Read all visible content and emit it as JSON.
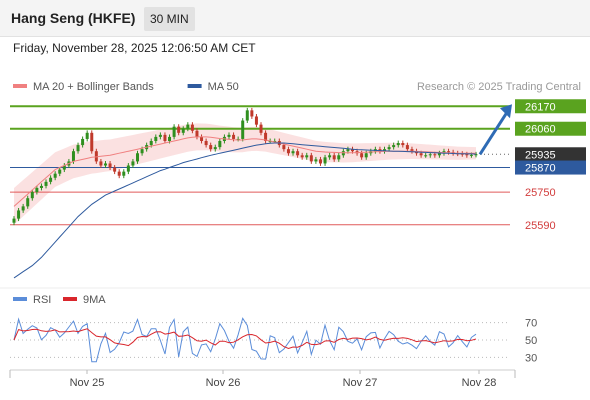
{
  "header": {
    "instrument": "Hang Seng (HKFE)",
    "timeframe": "30 MIN",
    "datetime": "Friday, November 28, 2025 12:06:50 AM CET"
  },
  "legend": {
    "items": [
      {
        "label": "MA 20 + Bollinger Bands",
        "color": "#f08080"
      },
      {
        "label": "MA 50",
        "color": "#2e5a9e"
      }
    ],
    "credit": "Research © 2025 Trading Central"
  },
  "chart_data": [
    {
      "type": "candlestick",
      "ylim": [
        25300,
        26230
      ],
      "x_ticks": [
        "Nov 25",
        "Nov 26",
        "Nov 27",
        "Nov 28"
      ],
      "colors": {
        "up": "#2f8f1f",
        "down": "#c0392b",
        "ma50": "#2e5a9e",
        "ma20": "#f08080",
        "bands": "#fadada"
      },
      "levels": [
        {
          "value": 26170,
          "label": "26170",
          "type": "resistance",
          "color": "#5aa31f"
        },
        {
          "value": 26060,
          "label": "26060",
          "type": "resistance",
          "color": "#5aa31f"
        },
        {
          "value": 25935,
          "label": "25935",
          "type": "last",
          "color": "#333333"
        },
        {
          "value": 25870,
          "label": "25870",
          "type": "pivot",
          "color": "#2e5a9e"
        },
        {
          "value": 25750,
          "label": "25750",
          "type": "support",
          "color": "#e05a5a"
        },
        {
          "value": 25590,
          "label": "25590",
          "type": "support",
          "color": "#e05a5a"
        }
      ],
      "last_price": 25935,
      "close": [
        25620,
        25660,
        25680,
        25720,
        25750,
        25770,
        25780,
        25800,
        25820,
        25840,
        25860,
        25880,
        25900,
        25950,
        25980,
        26010,
        26040,
        25950,
        25900,
        25880,
        25890,
        25870,
        25850,
        25830,
        25850,
        25880,
        25900,
        25940,
        25960,
        25980,
        26000,
        26020,
        26030,
        26000,
        26020,
        26070,
        26040,
        26060,
        26080,
        26050,
        26020,
        26000,
        25980,
        25960,
        25970,
        26000,
        26020,
        26030,
        26010,
        26010,
        26100,
        26150,
        26120,
        26080,
        26040,
        26000,
        26000,
        26000,
        25980,
        25960,
        25940,
        25950,
        25930,
        25920,
        25930,
        25900,
        25910,
        25890,
        25920,
        25930,
        25910,
        25930,
        25950,
        25960,
        25950,
        25940,
        25920,
        25940,
        25950,
        25960,
        25950,
        25960,
        25970,
        25980,
        25990,
        25980,
        25960,
        25950,
        25940,
        25930,
        25930,
        25935,
        25930,
        25940,
        25950,
        25945,
        25940,
        25938,
        25935,
        25930,
        25932,
        25935
      ],
      "ma20": [
        25680,
        25700,
        25720,
        25740,
        25760,
        25780,
        25800,
        25820,
        25840,
        25860,
        25870,
        25880,
        25890,
        25900,
        25905,
        25910,
        25915,
        25920,
        25922,
        25925,
        25928,
        25930,
        25935,
        25940,
        25945,
        25950,
        25955,
        25960,
        25965,
        25970,
        25975,
        25980,
        25985,
        25990,
        25995,
        26000,
        26005,
        26010,
        26015,
        26018,
        26020,
        26020,
        26020,
        26018,
        26015,
        26012,
        26010,
        26008,
        26006,
        26005,
        26005,
        26008,
        26010,
        26010,
        26008,
        26005,
        26000,
        25995,
        25990,
        25985,
        25980,
        25975,
        25970,
        25965,
        25960,
        25955,
        25950,
        25948,
        25946,
        25945,
        25944,
        25943,
        25942,
        25942,
        25942,
        25943,
        25944,
        25945,
        25946,
        25947,
        25948,
        25949,
        25950,
        25950,
        25950,
        25950,
        25950,
        25950,
        25949,
        25948,
        25947,
        25946,
        25945,
        25944,
        25943,
        25942,
        25941,
        25940,
        25940,
        25940,
        25940,
        25940
      ],
      "ma50": [
        25330,
        25345,
        25360,
        25375,
        25390,
        25410,
        25430,
        25455,
        25480,
        25505,
        25530,
        25555,
        25580,
        25605,
        25630,
        25650,
        25670,
        25690,
        25705,
        25720,
        25735,
        25745,
        25755,
        25765,
        25775,
        25785,
        25795,
        25805,
        25815,
        25825,
        25835,
        25845,
        25855,
        25862,
        25870,
        25878,
        25886,
        25894,
        25900,
        25906,
        25912,
        25918,
        25924,
        25930,
        25935,
        25940,
        25945,
        25950,
        25955,
        25960,
        25965,
        25970,
        25975,
        25980,
        25983,
        25986,
        25989,
        25990,
        25990,
        25990,
        25988,
        25986,
        25984,
        25982,
        25980,
        25978,
        25976,
        25974,
        25972,
        25970,
        25968,
        25966,
        25964,
        25962,
        25960,
        25958,
        25957,
        25956,
        25955,
        25954,
        25953,
        25952,
        25951,
        25950,
        25950,
        25949,
        25948,
        25947,
        25946,
        25945,
        25944,
        25943,
        25942,
        25941,
        25940,
        25940,
        25939,
        25938,
        25938,
        25937,
        25937,
        25936
      ]
    },
    {
      "type": "line",
      "ylim": [
        20,
        80
      ],
      "y_ticks": [
        70,
        50,
        30
      ],
      "series": [
        {
          "name": "RSI",
          "color": "#5b8dd9"
        },
        {
          "name": "9MA",
          "color": "#d9262c"
        }
      ]
    }
  ]
}
